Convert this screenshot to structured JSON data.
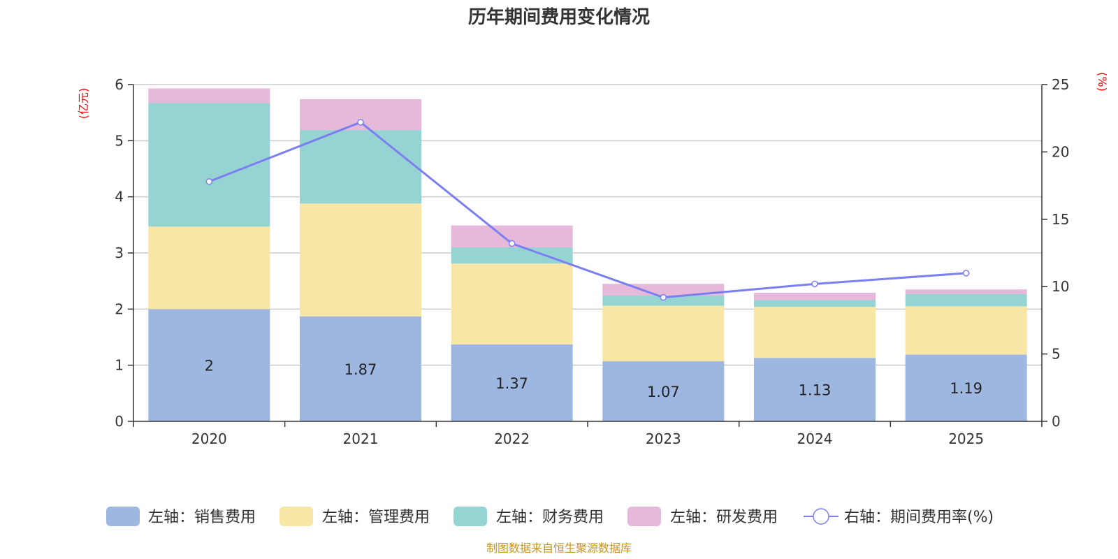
{
  "chart_data": {
    "type": "bar",
    "stacked": true,
    "title": "历年期间费用变化情况",
    "categories": [
      "2020",
      "2021",
      "2022",
      "2023",
      "2024",
      "2025"
    ],
    "left_axis": {
      "unit": "(亿元)",
      "min": 0,
      "max": 6,
      "ticks": [
        "0",
        "1",
        "2",
        "3",
        "4",
        "5",
        "6"
      ]
    },
    "right_axis": {
      "unit": "(%)",
      "min": 0,
      "max": 25,
      "ticks": [
        "0",
        "5",
        "10",
        "15",
        "20",
        "25"
      ]
    },
    "series": [
      {
        "name": "左轴：销售费用",
        "axis": "left",
        "color": "#9db7e1",
        "values": [
          2.0,
          1.87,
          1.37,
          1.07,
          1.13,
          1.19
        ],
        "labels": [
          "2",
          "1.87",
          "1.37",
          "1.07",
          "1.13",
          "1.19"
        ]
      },
      {
        "name": "左轴：管理费用",
        "axis": "left",
        "color": "#f7e6a6",
        "values": [
          1.47,
          2.01,
          1.44,
          0.99,
          0.91,
          0.86
        ]
      },
      {
        "name": "左轴：财务费用",
        "axis": "left",
        "color": "#96d4d4",
        "values": [
          2.2,
          1.31,
          0.29,
          0.18,
          0.12,
          0.22
        ]
      },
      {
        "name": "左轴：研发费用",
        "axis": "left",
        "color": "#e6b8da",
        "values": [
          0.26,
          0.55,
          0.39,
          0.21,
          0.13,
          0.08
        ]
      },
      {
        "name": "右轴：期间费用率(%)",
        "axis": "right",
        "type": "line",
        "color": "#7b7ff0",
        "values": [
          17.8,
          22.2,
          13.2,
          9.2,
          10.2,
          11.0
        ]
      }
    ],
    "legend": "bottom"
  },
  "source": "制图数据来自恒生聚源数据库"
}
